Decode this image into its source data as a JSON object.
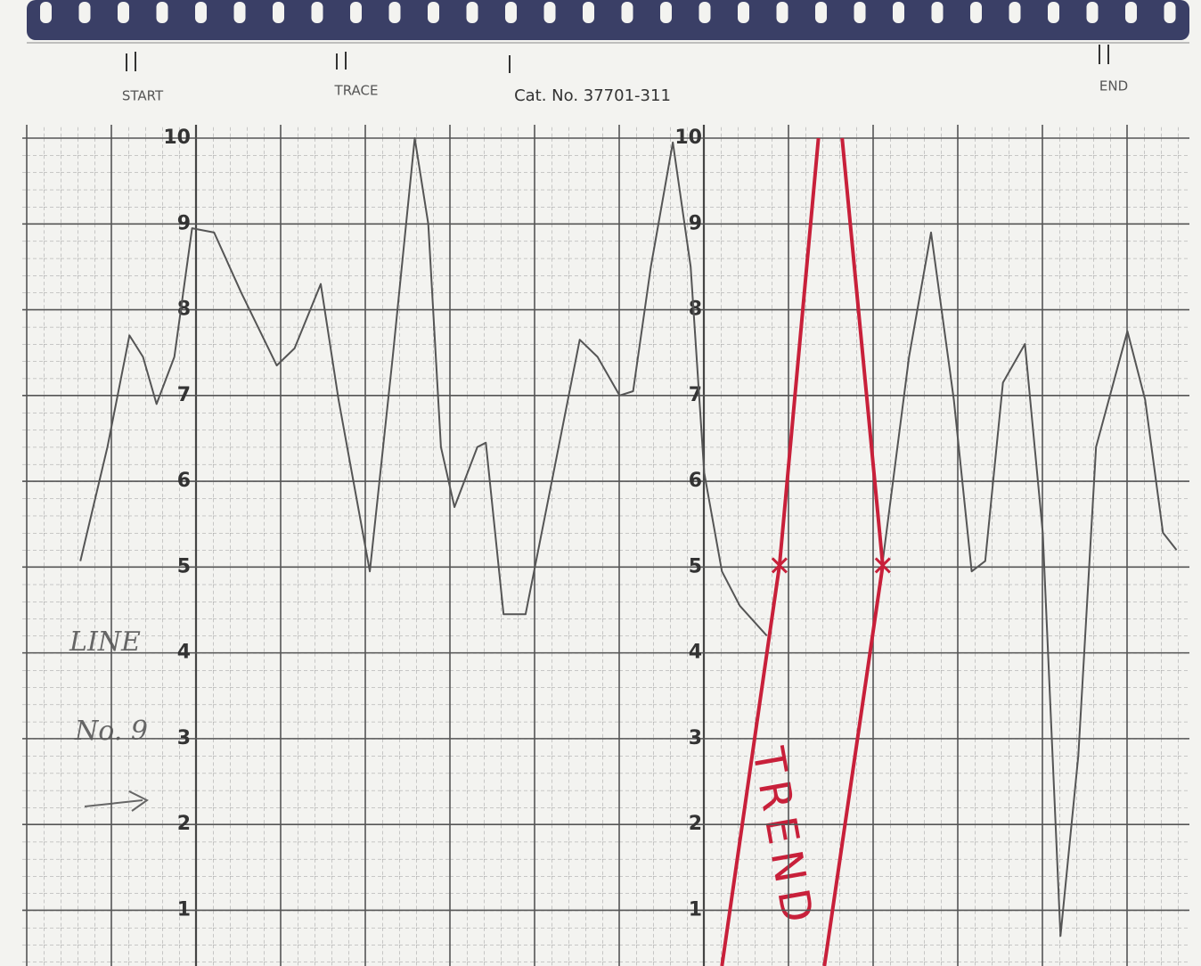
{
  "chart_data": {
    "type": "line",
    "header_labels": [
      "START",
      "TRACE",
      "Cat. No. 37701-311",
      "END"
    ],
    "note": [
      "LINE",
      "No. 9"
    ],
    "trend_label": "TREND",
    "x": [
      0.63,
      0.95,
      1.21,
      1.37,
      1.53,
      1.74,
      1.95,
      2.21,
      2.53,
      2.95,
      3.16,
      3.47,
      3.68,
      4.05,
      4.32,
      4.58,
      4.74,
      4.89,
      5.05,
      5.32,
      5.42,
      5.63,
      5.89,
      6.16,
      6.53,
      6.74,
      7.0,
      7.16,
      7.37,
      7.63,
      7.84,
      8.0,
      8.21,
      8.42,
      8.74,
      9.5,
      10.11,
      10.42,
      10.68,
      10.95,
      11.16,
      11.32,
      11.53,
      11.79,
      12.0,
      12.21,
      12.42,
      12.63,
      13.0,
      13.21,
      13.42,
      13.58
    ],
    "values": [
      5.07,
      6.4,
      7.7,
      7.45,
      6.9,
      7.45,
      8.95,
      8.9,
      8.2,
      7.35,
      7.55,
      8.3,
      6.95,
      4.95,
      7.45,
      10.0,
      9.0,
      6.4,
      5.7,
      6.4,
      6.45,
      4.45,
      4.45,
      5.8,
      7.65,
      7.45,
      7.0,
      7.05,
      8.5,
      9.95,
      8.5,
      6.1,
      4.95,
      4.55,
      4.2,
      null,
      5.07,
      7.45,
      8.9,
      6.95,
      4.95,
      5.07,
      7.15,
      7.6,
      5.4,
      0.7,
      2.8,
      6.4,
      7.75,
      6.95,
      5.4,
      5.2
    ],
    "color": "#555555",
    "trend_lines": [
      {
        "x": [
          9.35,
          8.89,
          8.21
        ],
        "values": [
          10.0,
          5.02,
          0.35
        ],
        "color": "#c8203a"
      },
      {
        "x": [
          9.63,
          10.11,
          9.42
        ],
        "values": [
          10.0,
          5.02,
          0.35
        ],
        "color": "#c8203a"
      }
    ],
    "xlim": [
      -0.32,
      13.87
    ],
    "ylim": [
      0.35,
      10
    ],
    "yticks": [
      1,
      2,
      3,
      4,
      5,
      6,
      7,
      8,
      9,
      10
    ],
    "grid": true
  }
}
